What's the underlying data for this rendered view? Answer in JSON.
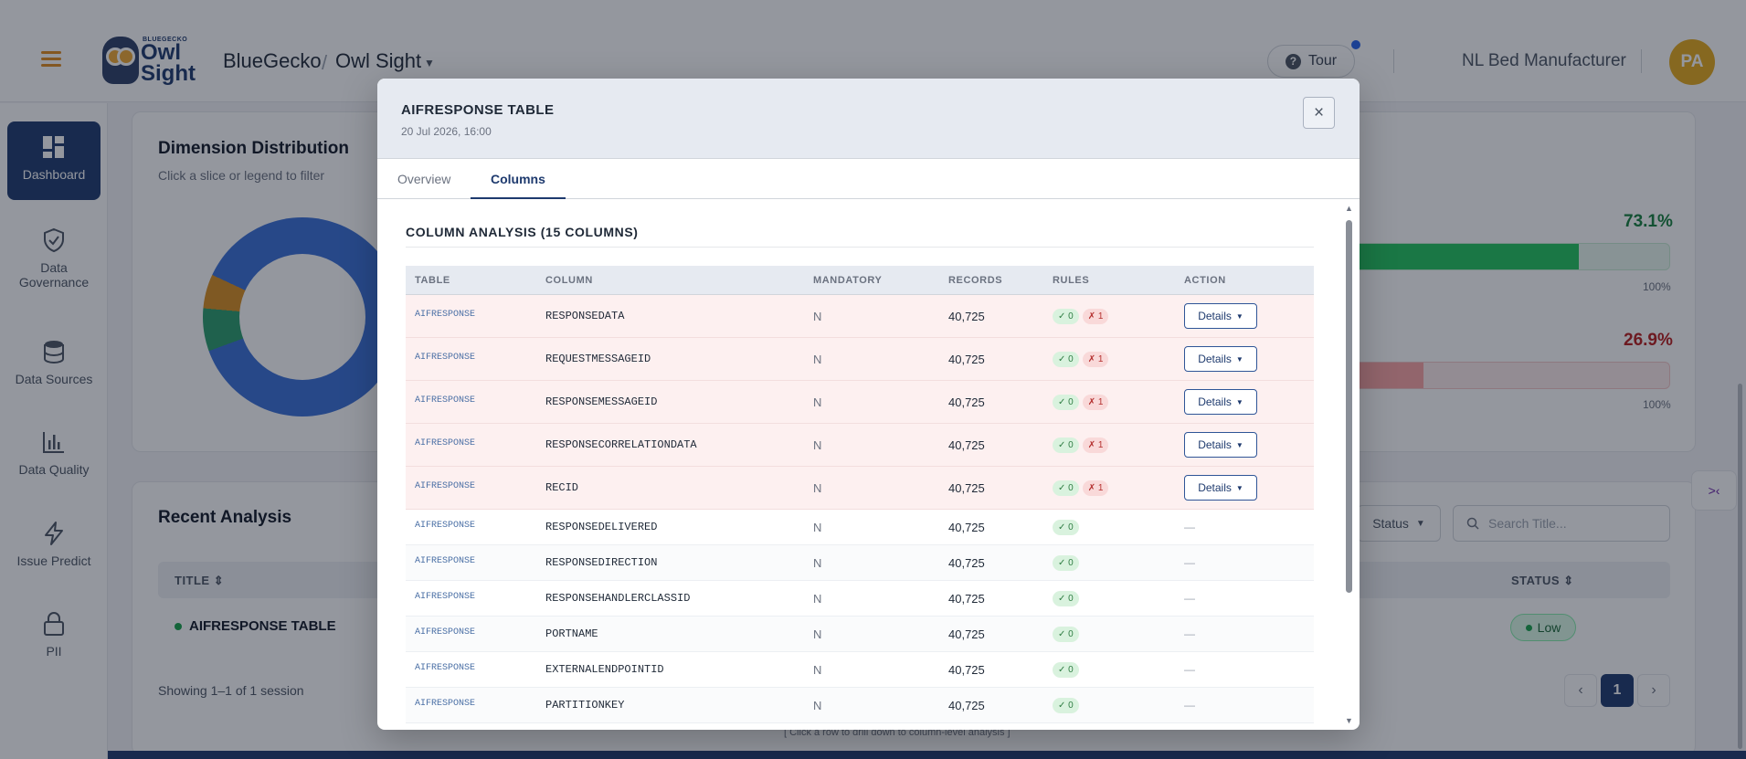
{
  "header": {
    "logo_small": "BLUEGECKO",
    "logo_big_line1": "Owl",
    "logo_big_line2": "Sight",
    "company": "BlueGecko",
    "separator": "/",
    "product": "Owl Sight",
    "tour_label": "Tour",
    "tour_icon": "?",
    "org_name": "NL Bed Manufacturer",
    "avatar_initials": "PA"
  },
  "sidebar": {
    "items": [
      {
        "label": "Dashboard",
        "icon": "dashboard-icon",
        "active": true
      },
      {
        "label": "Data Governance",
        "icon": "shield-check-icon"
      },
      {
        "label": "Data Sources",
        "icon": "database-icon"
      },
      {
        "label": "Data Quality",
        "icon": "bar-chart-icon"
      },
      {
        "label": "Issue Predict",
        "icon": "lightning-icon"
      },
      {
        "label": "PII",
        "icon": "lock-icon"
      }
    ]
  },
  "dimension": {
    "title": "Dimension Distribution",
    "subtitle": "Click a slice or legend to filter",
    "pct_pass": "73.1%",
    "pct_fail": "26.9%",
    "pass_fill": 0.731,
    "fail_fill": 0.269,
    "max_label_1": "100%",
    "max_label_2": "100%"
  },
  "recent": {
    "title": "Recent Analysis",
    "status_filter": "Status",
    "search_placeholder": "Search Title...",
    "col_title": "TITLE",
    "col_status": "STATUS",
    "row_title": "AIFRESPONSE TABLE",
    "row_status": "Low",
    "showing": "Showing 1–1 of 1 session",
    "page": "1",
    "hint": "[ Click a row to drill down to column-level analysis ]"
  },
  "modal": {
    "title": "AIFRESPONSE TABLE",
    "date": "20 Jul 2026, 16:00",
    "close_icon": "×",
    "tabs": [
      {
        "label": "Overview",
        "active": false
      },
      {
        "label": "Columns",
        "active": true
      }
    ],
    "section_title": "COLUMN ANALYSIS (15 COLUMNS)",
    "table": {
      "headers": {
        "table": "TABLE",
        "column": "COLUMN",
        "mandatory": "MANDATORY",
        "records": "RECORDS",
        "rules": "RULES",
        "action": "ACTION"
      },
      "details_label": "Details",
      "dash": "—",
      "rows": [
        {
          "table": "AIFRESPONSE",
          "column": "RESPONSEDATA",
          "mandatory": "N",
          "records": "40,725",
          "pass": "✓ 0",
          "fail": "✗ 1"
        },
        {
          "table": "AIFRESPONSE",
          "column": "REQUESTMESSAGEID",
          "mandatory": "N",
          "records": "40,725",
          "pass": "✓ 0",
          "fail": "✗ 1"
        },
        {
          "table": "AIFRESPONSE",
          "column": "RESPONSEMESSAGEID",
          "mandatory": "N",
          "records": "40,725",
          "pass": "✓ 0",
          "fail": "✗ 1"
        },
        {
          "table": "AIFRESPONSE",
          "column": "RESPONSECORRELATIONDATA",
          "mandatory": "N",
          "records": "40,725",
          "pass": "✓ 0",
          "fail": "✗ 1"
        },
        {
          "table": "AIFRESPONSE",
          "column": "RECID",
          "mandatory": "N",
          "records": "40,725",
          "pass": "✓ 0",
          "fail": "✗ 1"
        },
        {
          "table": "AIFRESPONSE",
          "column": "RESPONSEDELIVERED",
          "mandatory": "N",
          "records": "40,725",
          "pass": "✓ 0",
          "fail": ""
        },
        {
          "table": "AIFRESPONSE",
          "column": "RESPONSEDIRECTION",
          "mandatory": "N",
          "records": "40,725",
          "pass": "✓ 0",
          "fail": ""
        },
        {
          "table": "AIFRESPONSE",
          "column": "RESPONSEHANDLERCLASSID",
          "mandatory": "N",
          "records": "40,725",
          "pass": "✓ 0",
          "fail": ""
        },
        {
          "table": "AIFRESPONSE",
          "column": "PORTNAME",
          "mandatory": "N",
          "records": "40,725",
          "pass": "✓ 0",
          "fail": ""
        },
        {
          "table": "AIFRESPONSE",
          "column": "EXTERNALENDPOINTID",
          "mandatory": "N",
          "records": "40,725",
          "pass": "✓ 0",
          "fail": ""
        },
        {
          "table": "AIFRESPONSE",
          "column": "PARTITIONKEY",
          "mandatory": "N",
          "records": "40,725",
          "pass": "✓ 0",
          "fail": ""
        }
      ]
    }
  },
  "float_button_icon": "collapse-icon"
}
